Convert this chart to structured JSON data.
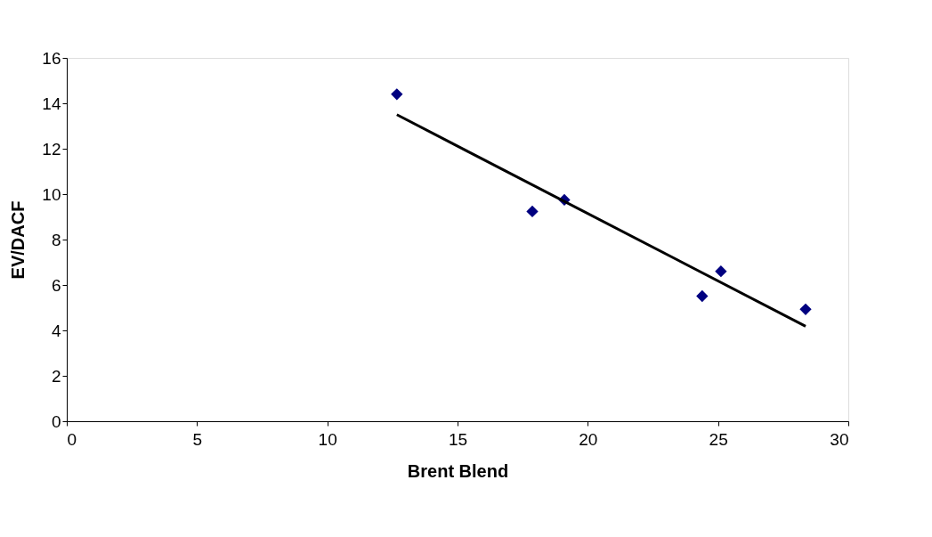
{
  "chart_data": {
    "type": "scatter",
    "xlabel": "Brent Blend",
    "ylabel": "EV/DACF",
    "series": [
      {
        "color": "#000080",
        "x": [
          12.67,
          17.87,
          19.1,
          24.39,
          25.11,
          28.36
        ],
        "values": [
          14.4,
          9.24,
          9.75,
          5.51,
          6.6,
          4.93
        ]
      },
      {
        "type": "line",
        "marker": "none",
        "line_style": "solid",
        "color": "#000000",
        "x": [
          12.67,
          28.36
        ],
        "values": [
          13.5,
          4.18
        ]
      }
    ],
    "xlim": [
      0,
      30
    ],
    "xticks": [
      0,
      5,
      10,
      15,
      20,
      25,
      30
    ],
    "ylim": [
      0,
      16
    ],
    "yticks": [
      0,
      2,
      4,
      6,
      8,
      10,
      12,
      14,
      16
    ],
    "grid": false,
    "marker": "diamond"
  }
}
